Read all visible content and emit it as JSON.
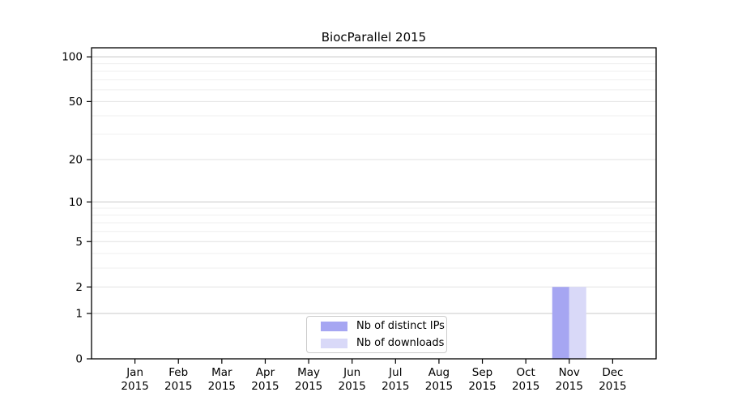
{
  "chart_data": {
    "type": "bar",
    "title": "BiocParallel 2015",
    "categories": [
      "Jan",
      "Feb",
      "Mar",
      "Apr",
      "May",
      "Jun",
      "Jul",
      "Aug",
      "Sep",
      "Oct",
      "Nov",
      "Dec"
    ],
    "x_year_label": "2015",
    "series": [
      {
        "name": "Nb of distinct IPs",
        "color": "#a6a6f2",
        "values": [
          0,
          0,
          0,
          0,
          0,
          0,
          0,
          0,
          0,
          0,
          2,
          0
        ]
      },
      {
        "name": "Nb of downloads",
        "color": "#d9d9f8",
        "values": [
          0,
          0,
          0,
          0,
          0,
          0,
          0,
          0,
          0,
          0,
          2,
          0
        ]
      }
    ],
    "xlabel": "",
    "ylabel": "",
    "yscale": "log1p",
    "ylim": [
      0,
      115
    ],
    "yticks": [
      0,
      1,
      2,
      5,
      10,
      20,
      50,
      100
    ],
    "gridlines": {
      "major": [
        1,
        10,
        100
      ],
      "mid": [
        2,
        5,
        20,
        50
      ],
      "minor": [
        3,
        4,
        6,
        7,
        8,
        9,
        30,
        40,
        60,
        70,
        80,
        90
      ]
    },
    "legend_position": "lower center",
    "grid": "on"
  },
  "colors": {
    "grid_major": "#c8c8c8",
    "grid_mid": "#e2e2e2",
    "grid_minor": "#efefef",
    "axis": "#000000",
    "background": "#ffffff"
  }
}
